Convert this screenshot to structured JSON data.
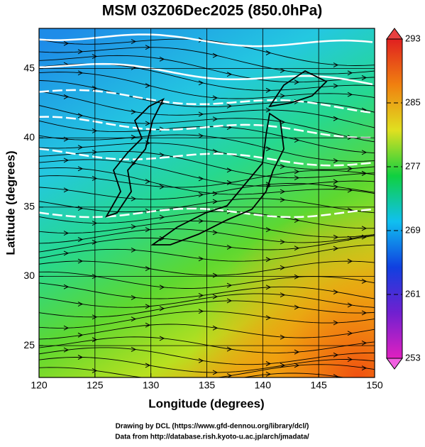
{
  "chart_data": {
    "type": "map",
    "title": "MSM 03Z06Dec2025 (850.0hPa)",
    "x_label": "Longitude (degrees)",
    "y_label": "Latitude  (degrees)",
    "xlim": [
      120,
      150
    ],
    "xticks": [
      120,
      125,
      130,
      135,
      140,
      145,
      150
    ],
    "ylim": [
      22.7,
      47.9
    ],
    "yticks": [
      25,
      30,
      35,
      40,
      45
    ],
    "grid": true,
    "colorbar": {
      "lim": [
        253,
        293
      ],
      "ticks": [
        253,
        261,
        269,
        277,
        285,
        293
      ],
      "colors": [
        "#e020c0",
        "#7020d0",
        "#1040e0",
        "#10c0f0",
        "#10d040",
        "#e0e020",
        "#f08010",
        "#e02020"
      ]
    },
    "annotations": [
      "Drawing by DCL (https://www.gfd-dennou.org/library/dcl/)",
      "Data from http://database.rish.kyoto-u.ac.jp/arch/jmadata/"
    ]
  }
}
